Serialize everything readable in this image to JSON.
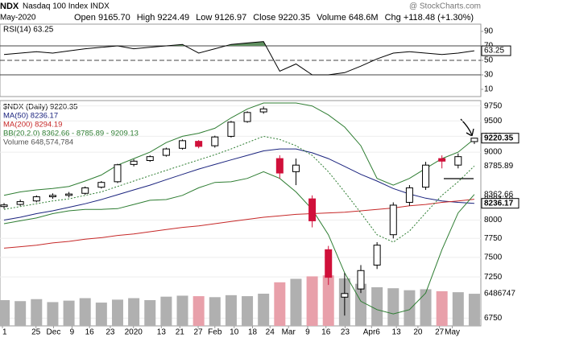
{
  "chart_data": {
    "type": "candlestick",
    "header": {
      "symbol": "NDX",
      "name": "Nasdaq 100 Index INDX",
      "date": "May-2020",
      "watermark": "@ StockCharts.com",
      "stats": [
        "Open 9165.70",
        "High 9224.49",
        "Low 9126.97",
        "Close 9220.35",
        "Volume 648.6M",
        "Chg +118.48 (+1.30%)"
      ]
    },
    "legend": [
      "$NDX (Daily) 9220.35",
      "MA(50) 8236.17",
      "MA(200) 8294.19",
      "BB(20,2.0) 8362.66 - 8785.89 - 9209.13",
      "Volume 648,574,784"
    ],
    "log_scale": true,
    "ylim": [
      6660,
      9800
    ],
    "yticks": [
      6750,
      7250,
      7500,
      7750,
      8000,
      9000,
      9250,
      9500,
      9750
    ],
    "xlim": [
      -0.25,
      29.4
    ],
    "xticks": [
      {
        "value": -0.1,
        "label": "1"
      },
      {
        "value": 1.97,
        "label": "25"
      },
      {
        "value": 3.05,
        "label": "Dec"
      },
      {
        "value": 4.19,
        "label": "9"
      },
      {
        "value": 5.27,
        "label": "16"
      },
      {
        "value": 6.55,
        "label": "23"
      },
      {
        "value": 7.98,
        "label": "2020"
      },
      {
        "value": 9.7,
        "label": "13"
      },
      {
        "value": 10.84,
        "label": "21"
      },
      {
        "value": 11.97,
        "label": "27"
      },
      {
        "value": 13.0,
        "label": "Feb"
      },
      {
        "value": 14.19,
        "label": "10"
      },
      {
        "value": 15.32,
        "label": "18"
      },
      {
        "value": 16.4,
        "label": "24"
      },
      {
        "value": 17.54,
        "label": "Mar"
      },
      {
        "value": 18.72,
        "label": "9"
      },
      {
        "value": 19.85,
        "label": "16"
      },
      {
        "value": 21.03,
        "label": "23"
      },
      {
        "value": 22.66,
        "label": "Apr6"
      },
      {
        "value": 24.19,
        "label": "13"
      },
      {
        "value": 25.52,
        "label": "20"
      },
      {
        "value": 26.85,
        "label": "27"
      },
      {
        "value": 27.64,
        "label": "May"
      }
    ],
    "up_color": "#000000",
    "down_color": "#d0103a",
    "open": [
      8190,
      8220,
      8270,
      8330,
      8350,
      8380,
      8470,
      8550,
      8810,
      8870,
      8950,
      9060,
      9170,
      9100,
      9250,
      9490,
      9650,
      8900,
      8700,
      8300,
      7600,
      7000,
      7100,
      7400,
      7800,
      8250,
      8470,
      8900,
      8800,
      9165.7
    ],
    "high": [
      8240,
      8290,
      8350,
      8380,
      8400,
      8480,
      8560,
      8820,
      8890,
      8950,
      9070,
      9200,
      9190,
      9260,
      9500,
      9660,
      9740,
      8950,
      8900,
      8350,
      7650,
      7300,
      7400,
      7700,
      8250,
      8500,
      8850,
      8950,
      8980,
      9224.49
    ],
    "low": [
      8160,
      8200,
      8250,
      8300,
      8320,
      8360,
      8450,
      8530,
      8780,
      8850,
      8930,
      9040,
      9060,
      9070,
      9230,
      9470,
      9620,
      8600,
      8500,
      7900,
      7150,
      6780,
      7050,
      7350,
      7750,
      8200,
      8430,
      8750,
      8750,
      9126.97
    ],
    "close": [
      8213,
      8260,
      8330,
      8350,
      8370,
      8460,
      8540,
      8805,
      8860,
      8930,
      9050,
      9180,
      9090,
      9240,
      9480,
      9640,
      9700,
      8680,
      8800,
      7990,
      7245,
      7044,
      7330,
      7660,
      8210,
      8460,
      8800,
      8860,
      8930,
      9220.35
    ],
    "series": [
      {
        "name": "MA(50)",
        "color": "#1a237e",
        "values": [
          8000,
          8040,
          8090,
          8130,
          8180,
          8230,
          8290,
          8360,
          8430,
          8500,
          8580,
          8660,
          8740,
          8810,
          8880,
          8950,
          9020,
          9050,
          9050,
          8990,
          8900,
          8780,
          8660,
          8560,
          8450,
          8370,
          8310,
          8270,
          8250,
          8236.17
        ]
      },
      {
        "name": "MA(200)",
        "color": "#c62828",
        "values": [
          7620,
          7640,
          7660,
          7690,
          7710,
          7740,
          7760,
          7790,
          7810,
          7840,
          7870,
          7900,
          7920,
          7950,
          7980,
          8010,
          8040,
          8060,
          8080,
          8090,
          8100,
          8110,
          8130,
          8150,
          8170,
          8200,
          8220,
          8250,
          8270,
          8294.19
        ]
      },
      {
        "name": "BB upper",
        "color": "#2e7d32",
        "values": [
          8350,
          8400,
          8430,
          8450,
          8480,
          8560,
          8650,
          8800,
          8900,
          9000,
          9150,
          9250,
          9300,
          9380,
          9550,
          9700,
          9800,
          9800,
          9800,
          9750,
          9600,
          9400,
          9100,
          8600,
          8500,
          8600,
          8750,
          8900,
          9000,
          9209.13
        ]
      },
      {
        "name": "BB middle",
        "color": "#2e7d32",
        "dashed": true,
        "values": [
          8150,
          8190,
          8230,
          8270,
          8300,
          8350,
          8400,
          8480,
          8560,
          8640,
          8720,
          8800,
          8880,
          8960,
          9050,
          9150,
          9250,
          9200,
          9100,
          8950,
          8700,
          8400,
          8100,
          7800,
          7700,
          7850,
          8100,
          8350,
          8550,
          8785.89
        ]
      },
      {
        "name": "BB lower",
        "color": "#2e7d32",
        "values": [
          7950,
          7990,
          8030,
          8090,
          8130,
          8150,
          8150,
          8160,
          8220,
          8280,
          8290,
          8350,
          8460,
          8540,
          8550,
          8600,
          8700,
          8600,
          8400,
          8150,
          7800,
          7300,
          6950,
          6850,
          6800,
          6850,
          7050,
          7600,
          8100,
          8362.66
        ]
      }
    ],
    "price_labels": [
      {
        "value": 9220.35,
        "label": "9220.35",
        "box": true
      },
      {
        "value": 8785.89,
        "label": "8785.89"
      },
      {
        "value": 8362.66,
        "label": "8362.66"
      },
      {
        "value": 8294.19,
        "label": "8294.19"
      },
      {
        "value": 8236.17,
        "label": "8236.17",
        "box": true
      }
    ],
    "volume": {
      "ylim": [
        0,
        4500000000
      ],
      "color": "#b0b0b0",
      "down_color": "#e8a0aa",
      "axis_label": "6486747",
      "values": [
        520000000,
        500000000,
        540000000,
        480000000,
        510000000,
        560000000,
        470000000,
        530000000,
        560000000,
        520000000,
        590000000,
        610000000,
        600000000,
        580000000,
        620000000,
        600000000,
        650000000,
        880000000,
        950000000,
        1000000000,
        1020000000,
        960000000,
        850000000,
        780000000,
        760000000,
        720000000,
        740000000,
        700000000,
        680000000,
        648574784
      ]
    },
    "rsi": {
      "title": "RSI(14) 63.25",
      "ylim": [
        0,
        100
      ],
      "yticks": [
        90,
        70,
        50,
        30,
        10
      ],
      "levels": [
        70,
        30
      ],
      "midline": 50,
      "fill_color": "#5f8f5f",
      "value_label": "63.25",
      "values": [
        58,
        60,
        62,
        60,
        63,
        66,
        68,
        70,
        66,
        68,
        70,
        72,
        60,
        66,
        72,
        74,
        76,
        35,
        45,
        30,
        30,
        33,
        42,
        52,
        60,
        62,
        60,
        58,
        60,
        63.25
      ]
    }
  }
}
